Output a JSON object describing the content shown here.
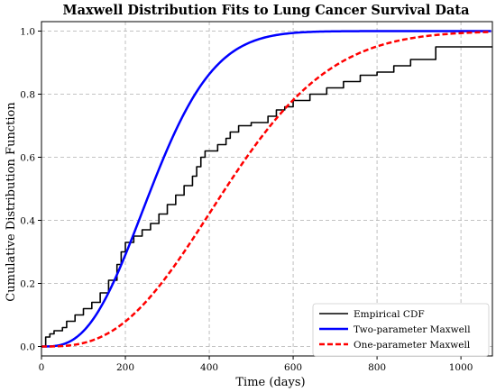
{
  "chart_data": {
    "type": "line",
    "title": "Maxwell Distribution Fits to Lung Cancer Survival Data",
    "xlabel": "Time (days)",
    "ylabel": "Cumulative Distribution Function",
    "xlim": [
      0,
      1075
    ],
    "ylim": [
      -0.03,
      1.03
    ],
    "xticks": [
      0,
      200,
      400,
      600,
      800,
      1000
    ],
    "yticks": [
      0.0,
      0.2,
      0.4,
      0.6,
      0.8,
      1.0
    ],
    "grid": true,
    "legend_position": "bottom-right",
    "series": [
      {
        "name": "Empirical CDF",
        "style": "step",
        "color": "#000000",
        "points": [
          [
            0,
            0.0
          ],
          [
            8,
            0.0
          ],
          [
            10,
            0.03
          ],
          [
            20,
            0.04
          ],
          [
            30,
            0.05
          ],
          [
            50,
            0.06
          ],
          [
            60,
            0.08
          ],
          [
            80,
            0.1
          ],
          [
            100,
            0.12
          ],
          [
            120,
            0.14
          ],
          [
            140,
            0.17
          ],
          [
            160,
            0.21
          ],
          [
            180,
            0.26
          ],
          [
            190,
            0.3
          ],
          [
            200,
            0.33
          ],
          [
            220,
            0.35
          ],
          [
            240,
            0.37
          ],
          [
            260,
            0.39
          ],
          [
            280,
            0.42
          ],
          [
            300,
            0.45
          ],
          [
            320,
            0.48
          ],
          [
            340,
            0.51
          ],
          [
            360,
            0.54
          ],
          [
            370,
            0.57
          ],
          [
            380,
            0.6
          ],
          [
            390,
            0.62
          ],
          [
            420,
            0.64
          ],
          [
            440,
            0.66
          ],
          [
            450,
            0.68
          ],
          [
            470,
            0.7
          ],
          [
            500,
            0.71
          ],
          [
            540,
            0.73
          ],
          [
            560,
            0.75
          ],
          [
            580,
            0.76
          ],
          [
            600,
            0.78
          ],
          [
            640,
            0.8
          ],
          [
            680,
            0.82
          ],
          [
            720,
            0.84
          ],
          [
            760,
            0.86
          ],
          [
            800,
            0.87
          ],
          [
            840,
            0.89
          ],
          [
            880,
            0.91
          ],
          [
            940,
            0.95
          ],
          [
            1075,
            0.95
          ]
        ]
      },
      {
        "name": "Two-parameter Maxwell",
        "style": "solid",
        "color": "#0000ff",
        "model": {
          "shift": 0,
          "scale": 170
        }
      },
      {
        "name": "One-parameter Maxwell",
        "style": "dashed",
        "color": "#ff0000",
        "model": {
          "shift": 0,
          "scale": 285
        }
      }
    ]
  }
}
